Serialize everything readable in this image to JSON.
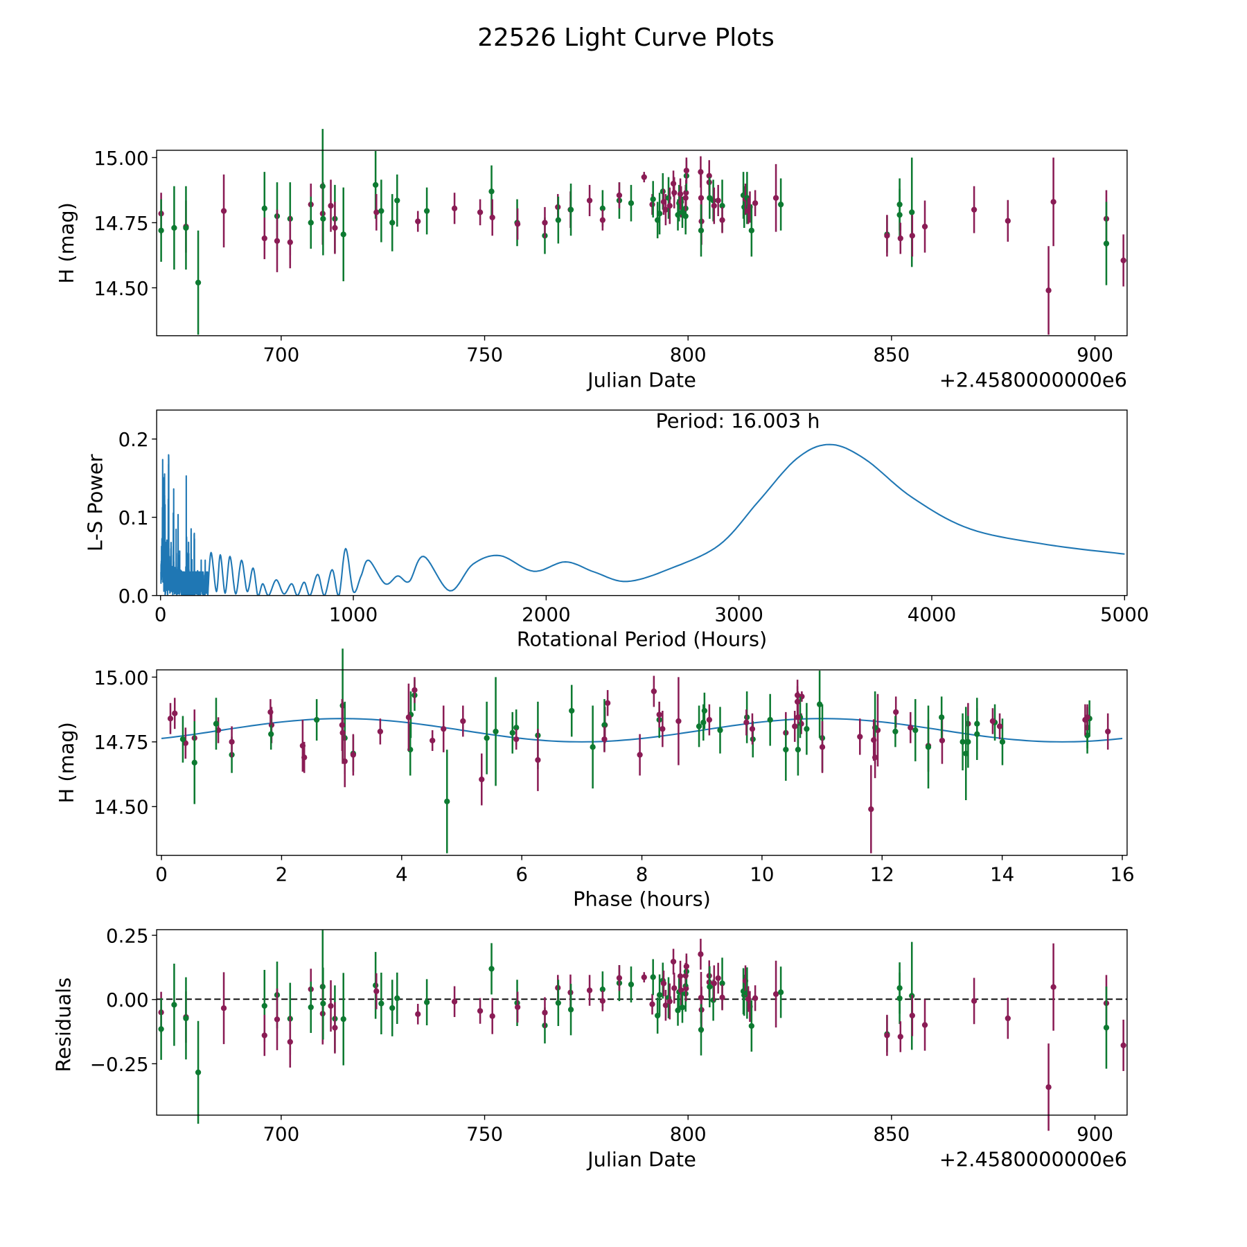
{
  "title": "22526 Light Curve Plots",
  "colors": {
    "band_a": "#8a1c55",
    "band_b": "#0d7a31",
    "curve": "#1f77b4"
  },
  "chart_data": [
    {
      "type": "scatter",
      "name": "light-curve",
      "xlabel": "Julian Date",
      "ylabel": "H (mag)",
      "offset_text": "+2.4580000000e6",
      "xlim": [
        669.4,
        907.9
      ],
      "ylim": [
        14.316,
        15.028
      ],
      "yinvert": false,
      "xticks": [
        700,
        750,
        800,
        850,
        900
      ],
      "yticks": [
        "15.00",
        "14.75",
        "14.50"
      ],
      "points": [
        [
          670.5,
          14.785,
          0.08,
          0
        ],
        [
          670.5,
          14.72,
          0.12,
          1
        ],
        [
          673.7,
          14.73,
          0.16,
          1
        ],
        [
          676.6,
          14.735,
          0.1,
          0
        ],
        [
          676.6,
          14.73,
          0.16,
          1
        ],
        [
          679.6,
          14.52,
          0.2,
          1
        ],
        [
          685.9,
          14.795,
          0.14,
          0
        ],
        [
          695.9,
          14.805,
          0.14,
          1
        ],
        [
          695.9,
          14.69,
          0.08,
          0
        ],
        [
          699,
          14.775,
          0.13,
          1
        ],
        [
          699,
          14.68,
          0.12,
          0
        ],
        [
          702.2,
          14.765,
          0.14,
          1
        ],
        [
          702.2,
          14.675,
          0.1,
          0
        ],
        [
          707.3,
          14.82,
          0.08,
          0
        ],
        [
          707.3,
          14.75,
          0.1,
          1
        ],
        [
          710.2,
          14.89,
          0.22,
          1
        ],
        [
          710.2,
          14.785,
          0.12,
          0
        ],
        [
          710.3,
          14.765,
          0.14,
          1
        ],
        [
          712.2,
          14.815,
          0.1,
          0
        ],
        [
          713.2,
          14.765,
          0.13,
          1
        ],
        [
          713.2,
          14.73,
          0.1,
          0
        ],
        [
          715.3,
          14.705,
          0.18,
          1
        ],
        [
          723.2,
          14.895,
          0.13,
          1
        ],
        [
          723.4,
          14.79,
          0.07,
          0
        ],
        [
          724.6,
          14.795,
          0.12,
          1
        ],
        [
          727.3,
          14.75,
          0.11,
          1
        ],
        [
          728.5,
          14.835,
          0.1,
          1
        ],
        [
          733.6,
          14.755,
          0.04,
          0
        ],
        [
          735.8,
          14.795,
          0.09,
          1
        ],
        [
          742.6,
          14.805,
          0.06,
          0
        ],
        [
          748.9,
          14.79,
          0.05,
          0
        ],
        [
          751.7,
          14.87,
          0.1,
          1
        ],
        [
          751.9,
          14.77,
          0.07,
          0
        ],
        [
          758,
          14.75,
          0.09,
          1
        ],
        [
          758.1,
          14.745,
          0.06,
          0
        ],
        [
          764.8,
          14.7,
          0.07,
          1
        ],
        [
          764.8,
          14.75,
          0.06,
          0
        ],
        [
          768,
          14.81,
          0.05,
          0
        ],
        [
          768.1,
          14.76,
          0.09,
          1
        ],
        [
          771.1,
          14.8,
          0.07,
          0
        ],
        [
          771.2,
          14.8,
          0.1,
          1
        ],
        [
          775.8,
          14.835,
          0.06,
          0
        ],
        [
          779,
          14.805,
          0.07,
          1
        ],
        [
          779,
          14.76,
          0.04,
          0
        ],
        [
          783.1,
          14.835,
          0.07,
          1
        ],
        [
          783.1,
          14.855,
          0.05,
          0
        ],
        [
          786,
          14.825,
          0.07,
          1
        ],
        [
          789.2,
          14.925,
          0.02,
          0
        ],
        [
          791.2,
          14.82,
          0.04,
          0
        ],
        [
          791.4,
          14.84,
          0.07,
          1
        ],
        [
          792.5,
          14.76,
          0.07,
          1
        ],
        [
          793,
          14.785,
          0.08,
          1
        ],
        [
          793.8,
          14.87,
          0.07,
          1
        ],
        [
          794,
          14.83,
          0.05,
          0
        ],
        [
          794.5,
          14.8,
          0.06,
          0
        ],
        [
          795.2,
          14.845,
          0.08,
          1
        ],
        [
          795.5,
          14.815,
          0.07,
          0
        ],
        [
          796.4,
          14.9,
          0.05,
          0
        ],
        [
          796.6,
          14.865,
          0.06,
          0
        ],
        [
          797.5,
          14.78,
          0.06,
          1
        ],
        [
          797.8,
          14.825,
          0.07,
          1
        ],
        [
          798.1,
          14.86,
          0.06,
          0
        ],
        [
          798.3,
          14.83,
          0.06,
          0
        ],
        [
          798.6,
          14.79,
          0.06,
          1
        ],
        [
          799.4,
          14.775,
          0.07,
          1
        ],
        [
          799.4,
          14.805,
          0.08,
          1
        ],
        [
          799.4,
          14.845,
          0.05,
          0
        ],
        [
          799.5,
          14.865,
          0.05,
          0
        ],
        [
          799.6,
          14.93,
          0.06,
          1
        ],
        [
          799.6,
          14.95,
          0.05,
          0
        ],
        [
          803.1,
          14.945,
          0.06,
          0
        ],
        [
          803.2,
          14.845,
          0.1,
          0
        ],
        [
          803.3,
          14.755,
          0.09,
          0
        ],
        [
          803.2,
          14.72,
          0.1,
          1
        ],
        [
          805.2,
          14.93,
          0.06,
          0
        ],
        [
          805.2,
          14.905,
          0.06,
          0
        ],
        [
          805.3,
          14.845,
          0.08,
          1
        ],
        [
          806.2,
          14.835,
          0.08,
          1
        ],
        [
          806.4,
          14.815,
          0.07,
          0
        ],
        [
          807.4,
          14.835,
          0.06,
          0
        ],
        [
          808.4,
          14.815,
          0.1,
          1
        ],
        [
          808.4,
          14.76,
          0.05,
          0
        ],
        [
          813.6,
          14.855,
          0.09,
          1
        ],
        [
          813.8,
          14.81,
          0.08,
          1
        ],
        [
          814.1,
          14.84,
          0.06,
          0
        ],
        [
          814.5,
          14.845,
          0.1,
          1
        ],
        [
          814.8,
          14.795,
          0.05,
          0
        ],
        [
          815.2,
          14.81,
          0.06,
          0
        ],
        [
          815.6,
          14.72,
          0.1,
          1
        ],
        [
          816.5,
          14.825,
          0.05,
          0
        ],
        [
          821.6,
          14.845,
          0.13,
          0
        ],
        [
          822.8,
          14.82,
          0.1,
          1
        ],
        [
          848.9,
          14.705,
          0.07,
          1
        ],
        [
          848.9,
          14.7,
          0.08,
          0
        ],
        [
          852,
          14.82,
          0.1,
          1
        ],
        [
          852,
          14.78,
          0.1,
          1
        ],
        [
          852.2,
          14.69,
          0.06,
          0
        ],
        [
          855,
          14.79,
          0.21,
          1
        ],
        [
          855.1,
          14.7,
          0.08,
          0
        ],
        [
          858.2,
          14.735,
          0.1,
          0
        ],
        [
          870.3,
          14.8,
          0.09,
          0
        ],
        [
          878.6,
          14.757,
          0.08,
          0
        ],
        [
          888.6,
          14.49,
          0.17,
          0
        ],
        [
          889.8,
          14.83,
          0.17,
          0
        ],
        [
          902.8,
          14.765,
          0.11,
          0
        ],
        [
          902.8,
          14.67,
          0.16,
          1
        ],
        [
          907,
          14.605,
          0.1,
          0
        ]
      ]
    },
    {
      "type": "line",
      "name": "periodogram",
      "xlabel": "Rotational Period (Hours)",
      "ylabel": "L-S Power",
      "annotation": "Period: 16.003 h",
      "xlim": [
        -20,
        5013
      ],
      "ylim": [
        0,
        0.237
      ],
      "xticks": [
        0,
        1000,
        2000,
        3000,
        4000,
        5000
      ],
      "yticks": [
        "0.0",
        "0.1",
        "0.2"
      ],
      "spikes": [
        [
          8,
          0.155
        ],
        [
          12,
          0.19
        ],
        [
          15,
          0.24
        ],
        [
          20,
          0.17
        ],
        [
          25,
          0.14
        ],
        [
          32,
          0.15
        ],
        [
          42,
          0.18
        ],
        [
          55,
          0.13
        ],
        [
          68,
          0.14
        ],
        [
          80,
          0.09
        ],
        [
          92,
          0.11
        ],
        [
          100,
          0.06
        ],
        [
          122,
          0.03
        ],
        [
          135,
          0.19
        ],
        [
          145,
          0.07
        ],
        [
          160,
          0.1
        ],
        [
          175,
          0.08
        ],
        [
          190,
          0.06
        ],
        [
          210,
          0.05
        ],
        [
          230,
          0.06
        ]
      ],
      "curve": [
        [
          245,
          0.0
        ],
        [
          262,
          0.055
        ],
        [
          290,
          0.005
        ],
        [
          310,
          0.052
        ],
        [
          335,
          0.003
        ],
        [
          360,
          0.05
        ],
        [
          390,
          0.002
        ],
        [
          420,
          0.045
        ],
        [
          450,
          0.005
        ],
        [
          480,
          0.035
        ],
        [
          505,
          0.0
        ],
        [
          530,
          0.015
        ],
        [
          560,
          0.0
        ],
        [
          600,
          0.02
        ],
        [
          640,
          0.002
        ],
        [
          680,
          0.015
        ],
        [
          710,
          0.0
        ],
        [
          745,
          0.017
        ],
        [
          775,
          0.0
        ],
        [
          815,
          0.027
        ],
        [
          850,
          0.0
        ],
        [
          890,
          0.033
        ],
        [
          925,
          0.0
        ],
        [
          960,
          0.06
        ],
        [
          1000,
          0.005
        ],
        [
          1040,
          0.025
        ],
        [
          1080,
          0.045
        ],
        [
          1165,
          0.015
        ],
        [
          1230,
          0.025
        ],
        [
          1290,
          0.018
        ],
        [
          1365,
          0.05
        ],
        [
          1500,
          0.006
        ],
        [
          1620,
          0.04
        ],
        [
          1760,
          0.051
        ],
        [
          1935,
          0.031
        ],
        [
          2100,
          0.043
        ],
        [
          2250,
          0.03
        ],
        [
          2420,
          0.018
        ],
        [
          2650,
          0.035
        ],
        [
          2900,
          0.065
        ],
        [
          3100,
          0.12
        ],
        [
          3300,
          0.175
        ],
        [
          3470,
          0.193
        ],
        [
          3650,
          0.175
        ],
        [
          3900,
          0.125
        ],
        [
          4200,
          0.085
        ],
        [
          4600,
          0.065
        ],
        [
          5000,
          0.053
        ]
      ]
    },
    {
      "type": "scatter",
      "name": "phase-plot",
      "xlabel": "Phase (hours)",
      "ylabel": "H (mag)",
      "period_hours": 16.003,
      "xlim": [
        -0.08,
        16.08
      ],
      "ylim": [
        14.312,
        15.028
      ],
      "xticks": [
        0,
        2,
        4,
        6,
        8,
        10,
        12,
        14,
        16
      ],
      "yticks": [
        "15.00",
        "14.75",
        "14.50"
      ],
      "model": {
        "mean": 14.795,
        "amplitude": 0.045,
        "peak_phase": 3
      }
    },
    {
      "type": "scatter",
      "name": "residuals",
      "xlabel": "Julian Date",
      "ylabel": "Residuals",
      "offset_text": "+2.4580000000e6",
      "xlim": [
        669.4,
        907.9
      ],
      "ylim": [
        -0.45,
        0.272
      ],
      "xticks": [
        700,
        750,
        800,
        850,
        900
      ],
      "yticks": [
        "0.25",
        "0.00",
        "−0.25"
      ]
    }
  ]
}
